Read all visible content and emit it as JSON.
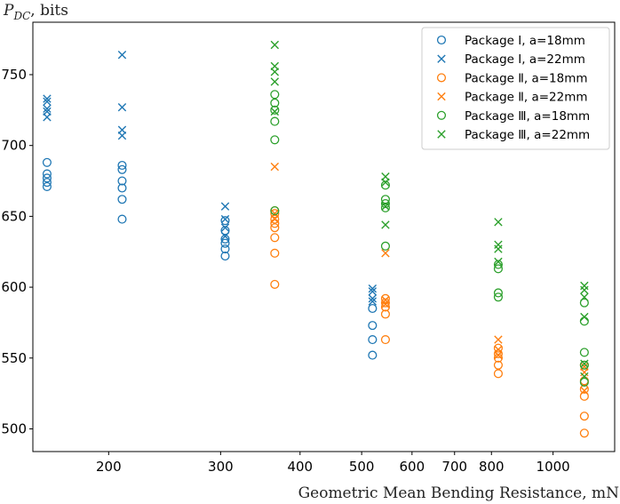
{
  "chart_data": {
    "type": "scatter",
    "title": "",
    "xlabel": "Geometric Mean Bending Resistance, mN",
    "ylabel_main": "P",
    "ylabel_sub": "DC",
    "ylabel_suffix": ", bits",
    "xscale": "log",
    "xlim": [
      152,
      1250
    ],
    "ylim": [
      484,
      787
    ],
    "xticks": [
      200,
      300,
      400,
      500,
      600,
      700,
      800,
      1000
    ],
    "xtick_labels": [
      "200",
      "300",
      "400",
      "500",
      "600",
      "700",
      "800",
      "1000"
    ],
    "yticks": [
      500,
      550,
      600,
      650,
      700,
      750
    ],
    "ytick_labels": [
      "500",
      "550",
      "600",
      "650",
      "700",
      "750"
    ],
    "legend_position": "top-right",
    "grid": false,
    "series": [
      {
        "name": "Package I, a=18mm",
        "marker": "circle",
        "color": "#1f77b4",
        "points": [
          {
            "x": 160,
            "y": 688
          },
          {
            "x": 160,
            "y": 680
          },
          {
            "x": 160,
            "y": 677
          },
          {
            "x": 160,
            "y": 674
          },
          {
            "x": 160,
            "y": 671
          },
          {
            "x": 210,
            "y": 686
          },
          {
            "x": 210,
            "y": 683
          },
          {
            "x": 210,
            "y": 675
          },
          {
            "x": 210,
            "y": 670
          },
          {
            "x": 210,
            "y": 662
          },
          {
            "x": 210,
            "y": 648
          },
          {
            "x": 305,
            "y": 647
          },
          {
            "x": 305,
            "y": 640
          },
          {
            "x": 305,
            "y": 634
          },
          {
            "x": 305,
            "y": 631
          },
          {
            "x": 305,
            "y": 627
          },
          {
            "x": 305,
            "y": 622
          },
          {
            "x": 520,
            "y": 585
          },
          {
            "x": 520,
            "y": 573
          },
          {
            "x": 520,
            "y": 563
          },
          {
            "x": 520,
            "y": 552
          }
        ]
      },
      {
        "name": "Package I, a=22mm",
        "marker": "x",
        "color": "#1f77b4",
        "points": [
          {
            "x": 160,
            "y": 733
          },
          {
            "x": 160,
            "y": 731
          },
          {
            "x": 160,
            "y": 726
          },
          {
            "x": 160,
            "y": 724
          },
          {
            "x": 160,
            "y": 720
          },
          {
            "x": 210,
            "y": 764
          },
          {
            "x": 210,
            "y": 727
          },
          {
            "x": 210,
            "y": 711
          },
          {
            "x": 210,
            "y": 707
          },
          {
            "x": 305,
            "y": 657
          },
          {
            "x": 305,
            "y": 648
          },
          {
            "x": 305,
            "y": 642
          },
          {
            "x": 305,
            "y": 636
          },
          {
            "x": 520,
            "y": 599
          },
          {
            "x": 520,
            "y": 597
          },
          {
            "x": 520,
            "y": 592
          },
          {
            "x": 520,
            "y": 590
          }
        ]
      },
      {
        "name": "Package Ⅱ, a=18mm",
        "marker": "circle",
        "color": "#ff7f0e",
        "points": [
          {
            "x": 365,
            "y": 654
          },
          {
            "x": 365,
            "y": 652
          },
          {
            "x": 365,
            "y": 648
          },
          {
            "x": 365,
            "y": 645
          },
          {
            "x": 365,
            "y": 642
          },
          {
            "x": 365,
            "y": 635
          },
          {
            "x": 365,
            "y": 624
          },
          {
            "x": 365,
            "y": 602
          },
          {
            "x": 545,
            "y": 592
          },
          {
            "x": 545,
            "y": 589
          },
          {
            "x": 545,
            "y": 586
          },
          {
            "x": 545,
            "y": 581
          },
          {
            "x": 545,
            "y": 563
          },
          {
            "x": 820,
            "y": 557
          },
          {
            "x": 820,
            "y": 553
          },
          {
            "x": 820,
            "y": 550
          },
          {
            "x": 820,
            "y": 545
          },
          {
            "x": 820,
            "y": 539
          },
          {
            "x": 1120,
            "y": 545
          },
          {
            "x": 1120,
            "y": 534
          },
          {
            "x": 1120,
            "y": 528
          },
          {
            "x": 1120,
            "y": 523
          },
          {
            "x": 1120,
            "y": 509
          },
          {
            "x": 1120,
            "y": 497
          }
        ]
      },
      {
        "name": "Package Ⅱ, a=22mm",
        "marker": "x",
        "color": "#ff7f0e",
        "points": [
          {
            "x": 365,
            "y": 685
          },
          {
            "x": 365,
            "y": 652
          },
          {
            "x": 365,
            "y": 648
          },
          {
            "x": 545,
            "y": 624
          },
          {
            "x": 545,
            "y": 591
          },
          {
            "x": 545,
            "y": 588
          },
          {
            "x": 820,
            "y": 563
          },
          {
            "x": 820,
            "y": 556
          },
          {
            "x": 820,
            "y": 552
          },
          {
            "x": 1120,
            "y": 544
          },
          {
            "x": 1120,
            "y": 540
          },
          {
            "x": 1120,
            "y": 527
          }
        ]
      },
      {
        "name": "Package Ⅲ, a=18mm",
        "marker": "circle",
        "color": "#2ca02c",
        "points": [
          {
            "x": 365,
            "y": 736
          },
          {
            "x": 365,
            "y": 730
          },
          {
            "x": 365,
            "y": 725
          },
          {
            "x": 365,
            "y": 717
          },
          {
            "x": 365,
            "y": 704
          },
          {
            "x": 365,
            "y": 654
          },
          {
            "x": 545,
            "y": 672
          },
          {
            "x": 545,
            "y": 662
          },
          {
            "x": 545,
            "y": 659
          },
          {
            "x": 545,
            "y": 656
          },
          {
            "x": 545,
            "y": 629
          },
          {
            "x": 820,
            "y": 616
          },
          {
            "x": 820,
            "y": 613
          },
          {
            "x": 820,
            "y": 596
          },
          {
            "x": 820,
            "y": 593
          },
          {
            "x": 1120,
            "y": 589
          },
          {
            "x": 1120,
            "y": 576
          },
          {
            "x": 1120,
            "y": 554
          },
          {
            "x": 1120,
            "y": 545
          },
          {
            "x": 1120,
            "y": 533
          }
        ]
      },
      {
        "name": "Package Ⅲ, a=22mm",
        "marker": "x",
        "color": "#2ca02c",
        "points": [
          {
            "x": 365,
            "y": 771
          },
          {
            "x": 365,
            "y": 756
          },
          {
            "x": 365,
            "y": 752
          },
          {
            "x": 365,
            "y": 745
          },
          {
            "x": 365,
            "y": 724
          },
          {
            "x": 545,
            "y": 678
          },
          {
            "x": 545,
            "y": 674
          },
          {
            "x": 545,
            "y": 657
          },
          {
            "x": 545,
            "y": 644
          },
          {
            "x": 820,
            "y": 646
          },
          {
            "x": 820,
            "y": 630
          },
          {
            "x": 820,
            "y": 627
          },
          {
            "x": 820,
            "y": 618
          },
          {
            "x": 1120,
            "y": 601
          },
          {
            "x": 1120,
            "y": 598
          },
          {
            "x": 1120,
            "y": 593
          },
          {
            "x": 1120,
            "y": 579
          },
          {
            "x": 1120,
            "y": 546
          },
          {
            "x": 1120,
            "y": 537
          }
        ]
      }
    ]
  }
}
